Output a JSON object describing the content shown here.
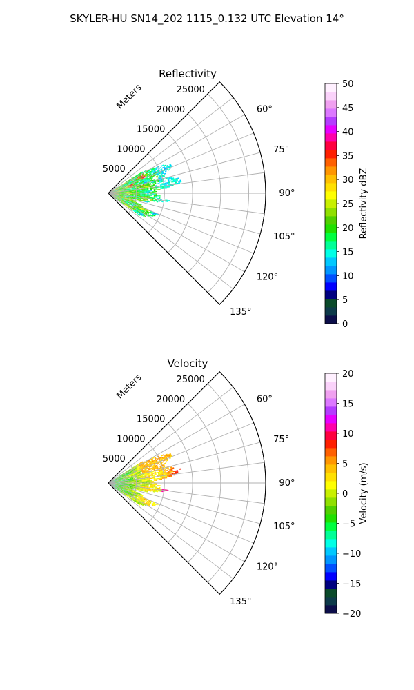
{
  "figure": {
    "title": "SKYLER-HU  SN14_202  1115_0.132 UTC Elevation 14°"
  },
  "chart_data": [
    {
      "type": "heatmap",
      "subtype": "polar-sector",
      "title": "Reflectivity",
      "radial_label": "Meters",
      "theta_range_deg": [
        45,
        135
      ],
      "r_range": [
        0,
        28000
      ],
      "grid": true,
      "radial_ticks": [
        5000,
        10000,
        15000,
        20000,
        25000
      ],
      "radial_tick_labels": [
        "5000",
        "10000",
        "15000",
        "20000",
        "25000"
      ],
      "theta_ticks": [
        60,
        75,
        90,
        105,
        120,
        135
      ],
      "theta_tick_labels": [
        "60°",
        "75°",
        "90°",
        "105°",
        "120°",
        "135°"
      ],
      "colorbar": {
        "label": "Reflectivity dBZ",
        "range": [
          0,
          50
        ],
        "ticks": [
          0,
          5,
          10,
          15,
          20,
          25,
          30,
          35,
          40,
          45,
          50
        ],
        "tick_labels": [
          "0",
          "5",
          "10",
          "15",
          "20",
          "25",
          "30",
          "35",
          "40",
          "45",
          "50"
        ],
        "colors": [
          "#0c0e4a",
          "#0d3a4a",
          "#0a4a2a",
          "#000080",
          "#0000ff",
          "#0050ff",
          "#0096ff",
          "#00c8ff",
          "#00ffe6",
          "#00ff96",
          "#00ff40",
          "#20e000",
          "#50d000",
          "#90e000",
          "#c8f000",
          "#ffff00",
          "#ffe000",
          "#ffc000",
          "#ff9600",
          "#ff6000",
          "#ff2000",
          "#ff0040",
          "#ff00aa",
          "#e600ff",
          "#b43cff",
          "#dc78ff",
          "#f0a0f0",
          "#fad2fa",
          "#fff0ff"
        ]
      },
      "data_extent": {
        "description_values": "echo region in data units (azimuth deg, range m)",
        "azimuth_deg": [
          58,
          125
        ],
        "range_m": [
          0,
          13500
        ],
        "max_value_dbz": 38
      }
    },
    {
      "type": "heatmap",
      "subtype": "polar-sector",
      "title": "Velocity",
      "radial_label": "Meters",
      "theta_range_deg": [
        45,
        135
      ],
      "r_range": [
        0,
        28000
      ],
      "grid": true,
      "radial_ticks": [
        5000,
        10000,
        15000,
        20000,
        25000
      ],
      "radial_tick_labels": [
        "5000",
        "10000",
        "15000",
        "20000",
        "25000"
      ],
      "theta_ticks": [
        60,
        75,
        90,
        105,
        120,
        135
      ],
      "theta_tick_labels": [
        "60°",
        "75°",
        "90°",
        "105°",
        "120°",
        "135°"
      ],
      "colorbar": {
        "label": "Velocity (m/s)",
        "range": [
          -20,
          20
        ],
        "ticks": [
          -20,
          -15,
          -10,
          -5,
          0,
          5,
          10,
          15,
          20
        ],
        "tick_labels": [
          "−20",
          "−15",
          "−10",
          "−5",
          "0",
          "5",
          "10",
          "15",
          "20"
        ],
        "colors": [
          "#0c0e4a",
          "#0d3a4a",
          "#0a4a2a",
          "#000080",
          "#0000ff",
          "#0050ff",
          "#0096ff",
          "#00c8ff",
          "#00ffe6",
          "#00ff96",
          "#00ff40",
          "#20e000",
          "#50d000",
          "#90e000",
          "#c8f000",
          "#ffff00",
          "#ffe000",
          "#ffc000",
          "#ff9600",
          "#ff6000",
          "#ff2000",
          "#ff0040",
          "#ff00aa",
          "#e600ff",
          "#b43cff",
          "#dc78ff",
          "#f0a0f0",
          "#fad2fa",
          "#fff0ff"
        ]
      },
      "data_extent": {
        "azimuth_deg": [
          58,
          125
        ],
        "range_m": [
          0,
          13500
        ],
        "min_value_ms": -8,
        "max_value_ms": 12
      }
    }
  ]
}
